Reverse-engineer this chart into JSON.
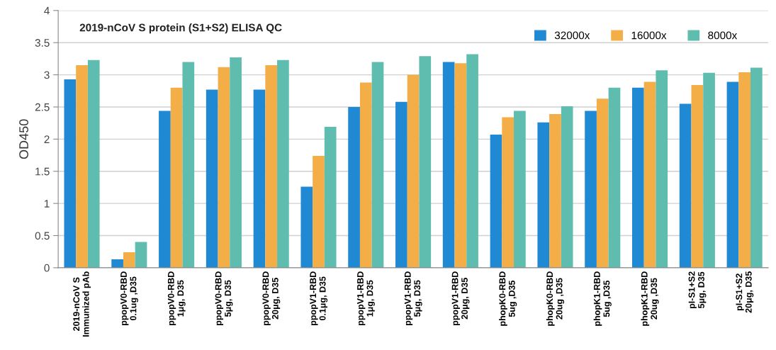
{
  "chart_data": {
    "type": "bar",
    "title": "2019-nCoV S protein (S1+S2) ELISA QC",
    "ylabel": "OD450",
    "categories": [
      "2019-nCoV S\nImmunized pAb",
      "ppopV0-RBD\n0.1ug ,D35",
      "ppopV0-RBD\n1μg, D35",
      "ppopV0-RBD\n5μg, D35",
      "ppopV0-RBD\n20μg, D35",
      "ppopV1-RBD\n0.1μg, D35",
      "ppopV1-RBD\n1μg, D35",
      "ppopV1-RBD\n5μg, D35",
      "ppopV1-RBD\n20μg, D35",
      "phopK0-RBD\n5ug ,D35",
      "phopK0-RBD\n20ug ,D35",
      "phopK1-RBD\n5ug ,D35",
      "phopK1-RBD\n20ug ,D35",
      "pI-S1+S2\n5μg, D35",
      "pI-S1+S2\n20μg, D35"
    ],
    "series": [
      {
        "name": "32000x",
        "color": "#2089d3",
        "values": [
          2.93,
          0.13,
          2.44,
          2.77,
          2.77,
          1.26,
          2.5,
          2.58,
          3.2,
          2.07,
          2.26,
          2.44,
          2.8,
          2.55,
          2.89
        ]
      },
      {
        "name": "16000x",
        "color": "#f4ae48",
        "values": [
          3.15,
          0.24,
          2.8,
          3.12,
          3.15,
          1.74,
          2.88,
          3.0,
          3.18,
          2.34,
          2.39,
          2.63,
          2.89,
          2.84,
          3.04
        ]
      },
      {
        "name": "8000x",
        "color": "#5fbdb0",
        "values": [
          3.23,
          0.4,
          3.2,
          3.27,
          3.23,
          2.19,
          3.2,
          3.29,
          3.32,
          2.44,
          2.51,
          2.8,
          3.07,
          3.03,
          3.11
        ]
      }
    ],
    "ylim": [
      0,
      4
    ],
    "yticks": [
      0,
      0.5,
      1,
      1.5,
      2,
      2.5,
      3,
      3.5,
      4
    ],
    "grid": "y",
    "legend": "top right"
  }
}
